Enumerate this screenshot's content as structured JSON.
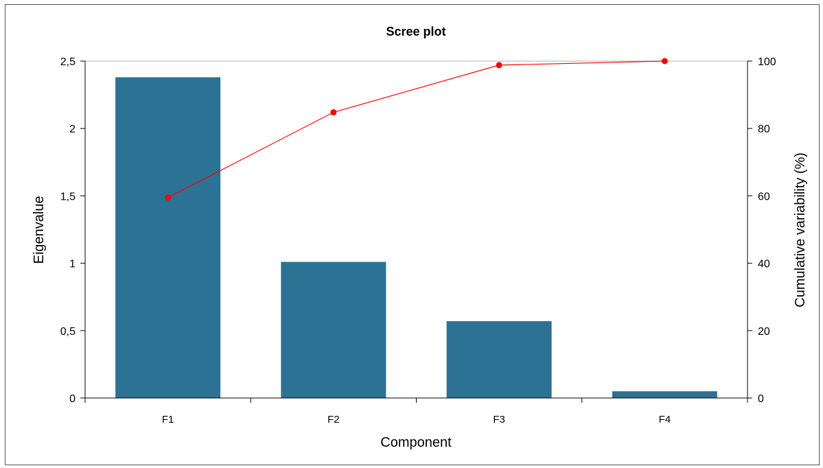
{
  "chart_data": {
    "type": "bar",
    "title": "Scree plot",
    "xlabel": "Component",
    "ylabel": "Eigenvalue",
    "y2label": "Cumulative variability (%)",
    "categories": [
      "F1",
      "F2",
      "F3",
      "F4"
    ],
    "ylim": [
      0,
      2.5
    ],
    "y2lim": [
      0,
      100
    ],
    "yticks": [
      "0",
      "0,5",
      "1",
      "1,5",
      "2",
      "2,5"
    ],
    "y2ticks": [
      "0",
      "20",
      "40",
      "60",
      "80",
      "100"
    ],
    "series": [
      {
        "type": "bar",
        "axis": "left",
        "values": [
          2.38,
          1.01,
          0.57,
          0.05
        ],
        "color": "#2b7295"
      },
      {
        "type": "line",
        "axis": "right",
        "values": [
          59.5,
          84.8,
          98.8,
          100
        ],
        "color": "#ff0000"
      }
    ]
  }
}
